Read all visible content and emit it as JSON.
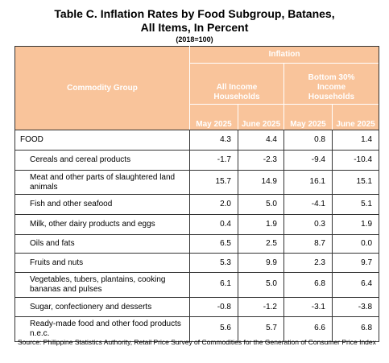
{
  "header": {
    "title_line1": "Table C. Inflation Rates by Food Subgroup, Batanes,",
    "title_line2": "All Items, In Percent",
    "subtitle": "(2018=100)"
  },
  "table": {
    "column_header": "Commodity Group",
    "group_header": "Inflation",
    "subgroups": [
      "All Income Households",
      "Bottom 30% Income Households"
    ],
    "months": [
      "May 2025",
      "June 2025",
      "May 2025",
      "June 2025"
    ],
    "rows": [
      [
        "FOOD",
        "4.3",
        "4.4",
        "0.8",
        "1.4"
      ],
      [
        "Cereals and cereal products",
        "-1.7",
        "-2.3",
        "-9.4",
        "-10.4"
      ],
      [
        "Meat and other parts of slaughtered land animals",
        "15.7",
        "14.9",
        "16.1",
        "15.1"
      ],
      [
        "Fish and other seafood",
        "2.0",
        "5.0",
        "-4.1",
        "5.1"
      ],
      [
        "Milk, other dairy products and eggs",
        "0.4",
        "1.9",
        "0.3",
        "1.9"
      ],
      [
        "Oils and fats",
        "6.5",
        "2.5",
        "8.7",
        "0.0"
      ],
      [
        "Fruits and nuts",
        "5.3",
        "9.9",
        "2.3",
        "9.7"
      ],
      [
        "Vegetables, tubers, plantains, cooking bananas and pulses",
        "6.1",
        "5.0",
        "6.8",
        "6.4"
      ],
      [
        "Sugar, confectionery and desserts",
        "-0.8",
        "-1.2",
        "-3.1",
        "-3.8"
      ],
      [
        "Ready-made food and other food products n.e.c.",
        "5.6",
        "5.7",
        "6.6",
        "6.8"
      ]
    ]
  },
  "footer": {
    "source": "Source: Philippine Statistics Authority, Retail Price Survey of Commodities for the Generation of Consumer Price Index"
  }
}
